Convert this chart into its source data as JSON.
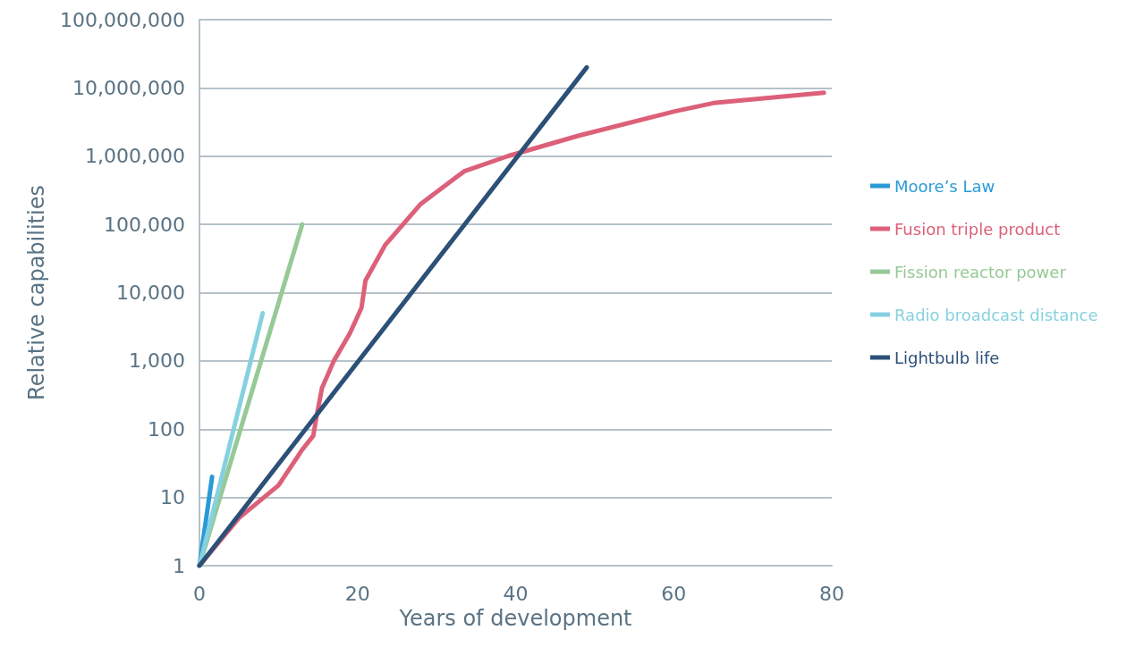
{
  "chart_data": {
    "type": "line",
    "xlabel": "Years of development",
    "ylabel": "Relative capabilities",
    "log": "y",
    "grid": "y",
    "legend": "right",
    "marker": "none",
    "line_style": "solid",
    "xlim": [
      0,
      80
    ],
    "xticks": [
      0,
      20,
      40,
      60,
      80
    ],
    "ylim": [
      1,
      100000000
    ],
    "yticks": [
      {
        "value": 1,
        "label": "1"
      },
      {
        "value": 10,
        "label": "10"
      },
      {
        "value": 100,
        "label": "100"
      },
      {
        "value": 1000,
        "label": "1,000"
      },
      {
        "value": 10000,
        "label": "10,000"
      },
      {
        "value": 100000,
        "label": "100,000"
      },
      {
        "value": 1000000,
        "label": "1,000,000"
      },
      {
        "value": 10000000,
        "label": "10,000,000"
      },
      {
        "value": 100000000,
        "label": "100,000,000"
      }
    ],
    "series": [
      {
        "name": "Moore’s Law",
        "color": "#2a9ad6",
        "x": [
          0,
          1.6
        ],
        "values": [
          1,
          20
        ]
      },
      {
        "name": "Fusion triple product",
        "color": "#dc6079",
        "x": [
          0,
          5,
          10,
          13,
          14.4,
          14.8,
          15.5,
          17,
          19,
          20.5,
          21,
          23.5,
          28,
          33.5,
          39,
          48,
          60,
          65,
          79
        ],
        "values": [
          1,
          5,
          15,
          50,
          80,
          150,
          400,
          1000,
          2500,
          6000,
          15000,
          50000,
          200000,
          600000,
          1000000,
          2000000,
          4500000,
          6000000,
          8500000
        ]
      },
      {
        "name": "Fission reactor power",
        "color": "#96c996",
        "x": [
          0,
          13
        ],
        "values": [
          1,
          100000
        ]
      },
      {
        "name": "Radio broadcast distance",
        "color": "#86d1df",
        "x": [
          0,
          8
        ],
        "values": [
          1,
          5000
        ]
      },
      {
        "name": "Lightbulb life",
        "color": "#2c5077",
        "x": [
          0,
          49
        ],
        "values": [
          1,
          20000000
        ]
      }
    ]
  }
}
